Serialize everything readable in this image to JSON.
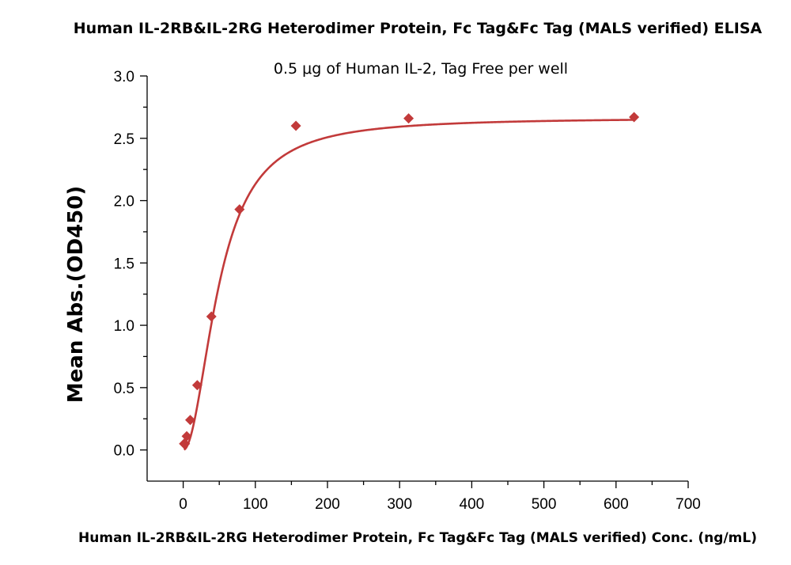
{
  "chart_data": {
    "type": "scatter",
    "title": "Human IL-2RB&IL-2RG Heterodimer Protein, Fc Tag&Fc Tag (MALS verified) ELISA",
    "subtitle": "0.5 μg of Human IL-2, Tag Free per well",
    "xlabel": "Human IL-2RB&IL-2RG Heterodimer Protein, Fc Tag&Fc Tag (MALS verified) Conc. (ng/mL)",
    "ylabel": "Mean Abs.(OD450)",
    "xlim": [
      -50,
      700
    ],
    "ylim": [
      -0.25,
      3.0
    ],
    "x_ticks": [
      0,
      100,
      200,
      300,
      400,
      500,
      600,
      700
    ],
    "x_tick_labels": [
      "0",
      "100",
      "200",
      "300",
      "400",
      "500",
      "600",
      "700"
    ],
    "y_ticks": [
      0.0,
      0.5,
      1.0,
      1.5,
      2.0,
      2.5,
      3.0
    ],
    "y_tick_labels": [
      "0.0",
      "0.5",
      "1.0",
      "1.5",
      "2.0",
      "2.5",
      "3.0"
    ],
    "grid": false,
    "color": "#c23a3a",
    "series": [
      {
        "marker": "diamond",
        "x": [
          1.22,
          2.44,
          4.88,
          9.77,
          19.5,
          39.1,
          78.1,
          156.25,
          312.5,
          625
        ],
        "y": [
          0.05,
          0.05,
          0.11,
          0.24,
          0.52,
          1.07,
          1.93,
          2.6,
          2.66,
          2.67
        ]
      }
    ],
    "fit_curve": {
      "type": "4PL",
      "bottom": 0.0,
      "top": 2.665,
      "ec50": 50,
      "hill": 2.0
    }
  }
}
